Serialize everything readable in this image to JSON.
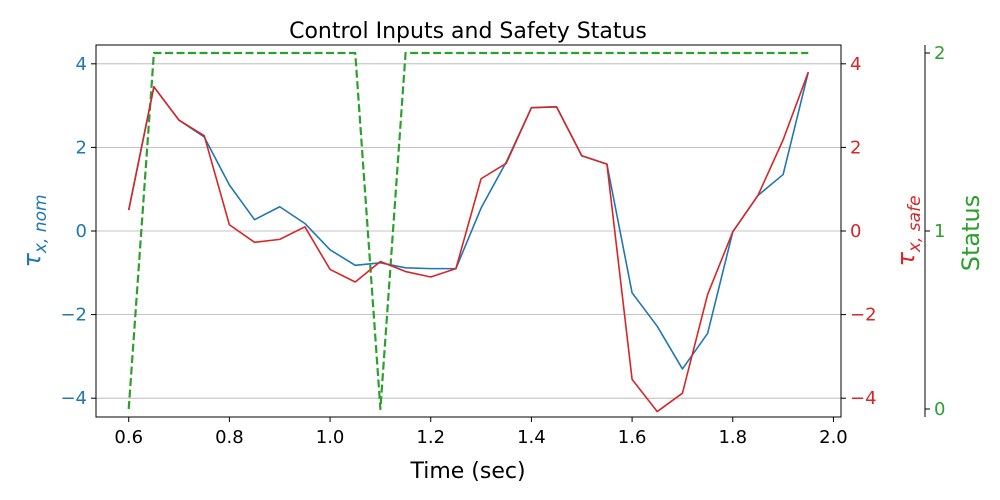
{
  "chart_data": {
    "type": "line",
    "title": "Control Inputs and Safety Status",
    "xlabel": "Time (sec)",
    "ylabel_left": "τx,nom",
    "ylabel_left_base": "τ",
    "ylabel_left_sub": "x, nom",
    "ylabel_right": "τx,safe",
    "ylabel_right_base": "τ",
    "ylabel_right_sub": "x, safe",
    "ylabel_status": "Status",
    "xlim": [
      0.535,
      2.015
    ],
    "ylim_left": [
      -4.45,
      4.45
    ],
    "ylim_right": [
      -4.45,
      4.45
    ],
    "ylim_status": [
      -0.045,
      2.045
    ],
    "x_ticks": [
      "0.6",
      "0.8",
      "1.0",
      "1.2",
      "1.4",
      "1.6",
      "1.8",
      "2.0"
    ],
    "x_tick_values": [
      0.6,
      0.8,
      1.0,
      1.2,
      1.4,
      1.6,
      1.8,
      2.0
    ],
    "y_ticks_left": [
      "−4",
      "−2",
      "0",
      "2",
      "4"
    ],
    "y_ticks_right": [
      "−4",
      "−2",
      "0",
      "2",
      "4"
    ],
    "y_tick_values": [
      -4,
      -2,
      0,
      2,
      4
    ],
    "status_ticks": [
      "0",
      "1",
      "2"
    ],
    "status_tick_values": [
      0,
      1,
      2
    ],
    "grid": "horizontal",
    "colors": {
      "nom": "#1f77b4",
      "safe": "#d62728",
      "status": "#2ca02c",
      "grid": "#b0b0b0",
      "axis": "#000000"
    },
    "x": [
      0.6,
      0.65,
      0.7,
      0.75,
      0.8,
      0.85,
      0.9,
      0.95,
      1.0,
      1.05,
      1.1,
      1.15,
      1.2,
      1.25,
      1.3,
      1.35,
      1.4,
      1.45,
      1.5,
      1.55,
      1.6,
      1.65,
      1.7,
      1.75,
      1.8,
      1.85,
      1.9,
      1.95
    ],
    "series": [
      {
        "key": "nom",
        "axis": "left",
        "style": "solid",
        "values": [
          0.5,
          3.45,
          2.65,
          2.25,
          1.1,
          0.27,
          0.58,
          0.18,
          -0.45,
          -0.82,
          -0.76,
          -0.88,
          -0.9,
          -0.9,
          0.55,
          1.65,
          2.95,
          2.97,
          1.8,
          1.6,
          -1.48,
          -2.28,
          -3.3,
          -2.45,
          -0.02,
          0.85,
          1.35,
          3.8
        ]
      },
      {
        "key": "safe",
        "axis": "right",
        "style": "solid",
        "values": [
          0.5,
          3.45,
          2.65,
          2.28,
          0.15,
          -0.27,
          -0.2,
          0.1,
          -0.92,
          -1.22,
          -0.73,
          -0.97,
          -1.1,
          -0.9,
          1.25,
          1.62,
          2.95,
          2.97,
          1.8,
          1.6,
          -3.55,
          -4.32,
          -3.88,
          -1.52,
          -0.02,
          0.85,
          2.18,
          3.8
        ]
      },
      {
        "key": "status",
        "axis": "status",
        "style": "dashed",
        "values": [
          0,
          2,
          2,
          2,
          2,
          2,
          2,
          2,
          2,
          2,
          0,
          2,
          2,
          2,
          2,
          2,
          2,
          2,
          2,
          2,
          2,
          2,
          2,
          2,
          2,
          2,
          2,
          2
        ]
      }
    ]
  }
}
